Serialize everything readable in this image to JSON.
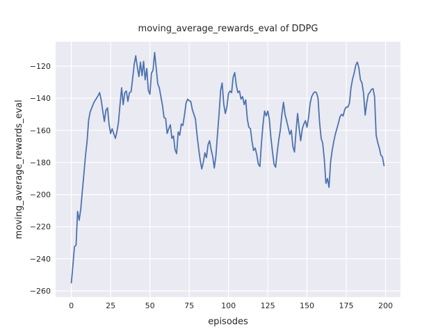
{
  "figure": {
    "background": "#ffffff"
  },
  "chart_data": {
    "type": "line",
    "title": "moving_average_rewards_eval of DDPG",
    "xlabel": "episodes",
    "ylabel": "moving_average_rewards_eval",
    "x_ticks": [
      0,
      25,
      50,
      75,
      100,
      125,
      150,
      175,
      200
    ],
    "y_ticks": [
      -120,
      -140,
      -160,
      -180,
      -200,
      -220,
      -240,
      -260
    ],
    "xlim": [
      -10,
      209.5
    ],
    "ylim": [
      -263.9,
      -104.8
    ],
    "grid": true,
    "legend": "none",
    "style": {
      "axes_background": "#eaeaf2",
      "grid_color": "#ffffff",
      "line_color": "#4c72b0",
      "text_color": "#262626",
      "line_width": 1.8
    },
    "series": [
      {
        "name": "moving_average_rewards_eval",
        "x_start": 0,
        "x_step": 1,
        "values": [
          -255,
          -244,
          -232.5,
          -231.5,
          -210.5,
          -216,
          -209,
          -198,
          -187,
          -176,
          -167,
          -153.5,
          -148.5,
          -146,
          -143.5,
          -141.5,
          -140,
          -138.5,
          -136.5,
          -141,
          -148,
          -154.5,
          -147.5,
          -146,
          -156,
          -162,
          -159,
          -162,
          -165,
          -161,
          -155,
          -144,
          -133.5,
          -144,
          -136.5,
          -135.5,
          -142,
          -136.5,
          -136,
          -128,
          -119,
          -113.5,
          -120.5,
          -126.5,
          -117.5,
          -126,
          -117,
          -128.5,
          -121.5,
          -135,
          -137.5,
          -124.5,
          -122.5,
          -111.5,
          -121,
          -131,
          -133.5,
          -139,
          -144.5,
          -152,
          -152.5,
          -162,
          -159,
          -156.5,
          -165,
          -163.5,
          -172,
          -174.5,
          -161,
          -163,
          -156,
          -157,
          -150.5,
          -143,
          -140.5,
          -141.5,
          -142,
          -147,
          -150,
          -153,
          -163,
          -171,
          -178.5,
          -184,
          -180,
          -174,
          -177,
          -169,
          -166.5,
          -172,
          -176.5,
          -183.5,
          -176,
          -163,
          -150,
          -135,
          -130.5,
          -143.5,
          -149.5,
          -145.5,
          -137,
          -135.5,
          -136.5,
          -127,
          -124,
          -132,
          -136.5,
          -135.5,
          -140.5,
          -139,
          -144,
          -141,
          -153,
          -158,
          -159,
          -167,
          -172.5,
          -171,
          -175,
          -181,
          -182.5,
          -168,
          -156,
          -148,
          -151,
          -148,
          -153,
          -164.5,
          -173,
          -181,
          -183,
          -174,
          -166,
          -160,
          -150,
          -142.5,
          -150,
          -154,
          -158,
          -162.5,
          -160,
          -170,
          -173.5,
          -161,
          -149.5,
          -159,
          -166.5,
          -159,
          -156,
          -154,
          -158,
          -152,
          -143,
          -139,
          -137,
          -136,
          -136.5,
          -140,
          -155,
          -165,
          -168,
          -178,
          -193,
          -190,
          -195.5,
          -180,
          -172.5,
          -167,
          -162.5,
          -159,
          -155.5,
          -151.5,
          -150,
          -151,
          -147,
          -145.5,
          -145.5,
          -143,
          -133.5,
          -128,
          -124.5,
          -119.5,
          -117.5,
          -121,
          -128.5,
          -130.5,
          -137,
          -150.5,
          -143,
          -137.5,
          -136.3,
          -134.5,
          -134,
          -139,
          -163,
          -167.5,
          -171,
          -175.5,
          -176.5,
          -182
        ]
      }
    ]
  }
}
